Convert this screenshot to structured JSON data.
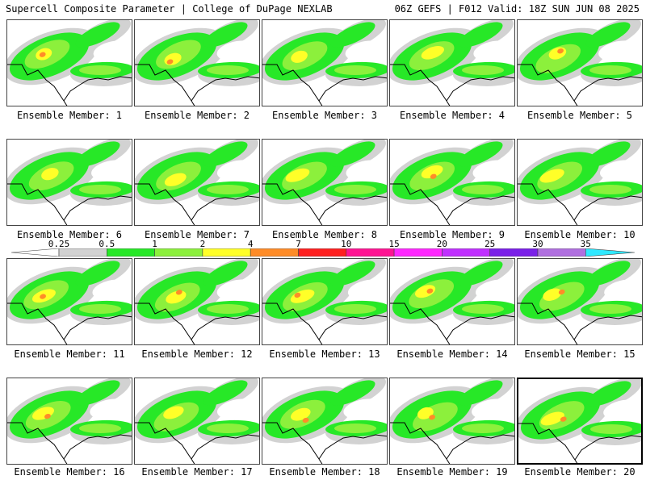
{
  "header": {
    "left": "Supercell Composite Parameter | College of DuPage NEXLAB",
    "right": "06Z GEFS | F012 Valid: 18Z SUN JUN 08 2025"
  },
  "label_prefix": "Ensemble Member: ",
  "members": [
    {
      "id": "1"
    },
    {
      "id": "2"
    },
    {
      "id": "3"
    },
    {
      "id": "4"
    },
    {
      "id": "5"
    },
    {
      "id": "6"
    },
    {
      "id": "7"
    },
    {
      "id": "8"
    },
    {
      "id": "9"
    },
    {
      "id": "10"
    },
    {
      "id": "11"
    },
    {
      "id": "12"
    },
    {
      "id": "13"
    },
    {
      "id": "14"
    },
    {
      "id": "15"
    },
    {
      "id": "16"
    },
    {
      "id": "17"
    },
    {
      "id": "18"
    },
    {
      "id": "19"
    },
    {
      "id": "20"
    }
  ],
  "selected_member": "20",
  "colorbar": {
    "ticks": [
      "0.25",
      "0.5",
      "1",
      "2",
      "4",
      "7",
      "10",
      "15",
      "20",
      "25",
      "30",
      "35"
    ],
    "colors": [
      "#ffffff",
      "#d2d2d2",
      "#27e827",
      "#8cf03c",
      "#ffff28",
      "#ff8c28",
      "#ff2020",
      "#ff1493",
      "#ff28ff",
      "#c030ff",
      "#7a20e8",
      "#b070e0",
      "#30e8ff"
    ],
    "color_names": [
      "below 0.25",
      "gray",
      "green",
      "light green",
      "yellow",
      "orange",
      "red",
      "deep pink",
      "magenta",
      "violet",
      "purple",
      "lavender",
      "cyan"
    ]
  }
}
